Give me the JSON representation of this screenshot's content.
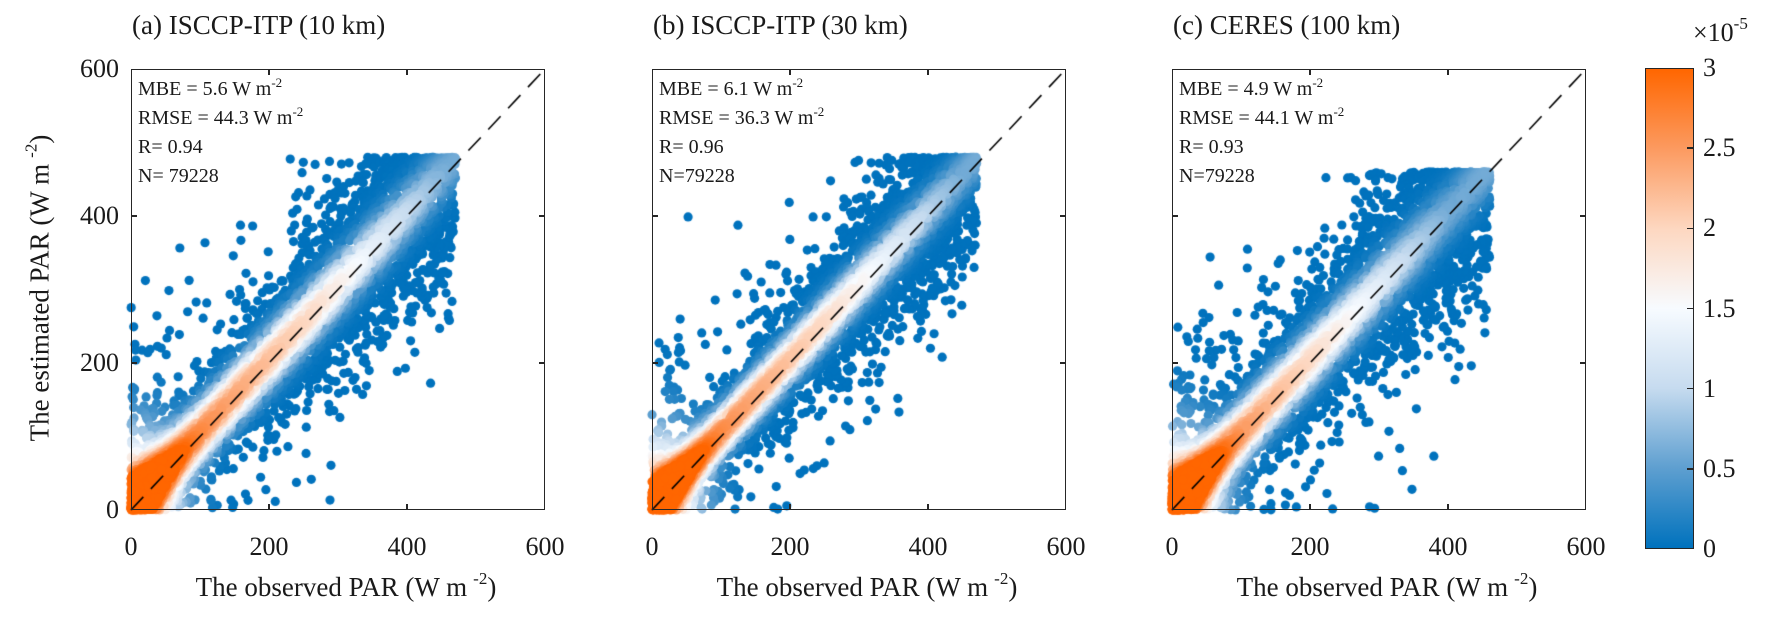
{
  "figure": {
    "ylabel": {
      "text": "The estimated PAR (W m",
      "sup": "-2",
      "close": ")"
    },
    "xlabel": {
      "text": "The observed PAR (W m",
      "sup": "-2",
      "close": ")"
    },
    "colors": {
      "low": "#0072BD",
      "mid": "#F7FBFF",
      "high": "#FF6600",
      "frame": "#262626",
      "diagonal": "#000000"
    }
  },
  "chart_data": [
    {
      "type": "scatter",
      "title": "(a) ISCCP-ITP (10 km)",
      "xlabel": "The observed PAR (W m-2)",
      "ylabel": "The estimated PAR (W m-2)",
      "xlim": [
        0,
        600
      ],
      "ylim": [
        0,
        600
      ],
      "xticks": [
        "0",
        "200",
        "400",
        "600"
      ],
      "yticks": [
        "0",
        "200",
        "400",
        "600"
      ],
      "reference_line": {
        "style": "dashed",
        "from": [
          0,
          0
        ],
        "to": [
          600,
          600
        ]
      },
      "stats": [
        {
          "label": "MBE = 5.6 W m",
          "sup": "-2"
        },
        {
          "label": "RMSE = 44.3 W m",
          "sup": "-2"
        },
        {
          "label": "R= 0.94",
          "sup": ""
        },
        {
          "label": "N= 79228",
          "sup": ""
        }
      ],
      "summary": {
        "MBE": 5.6,
        "RMSE": 44.3,
        "R": 0.94,
        "N": 79228
      },
      "cloud": {
        "x_max": 480,
        "y_max": 480,
        "bias": 5.6,
        "spread": 44.3,
        "outlier_spread": 110,
        "core_end": 260
      },
      "color_by": "point density"
    },
    {
      "type": "scatter",
      "title": "(b) ISCCP-ITP (30 km)",
      "xlabel": "The observed PAR (W m-2)",
      "ylabel": "",
      "xlim": [
        0,
        600
      ],
      "ylim": [
        0,
        600
      ],
      "xticks": [
        "0",
        "200",
        "400",
        "600"
      ],
      "yticks": [],
      "reference_line": {
        "style": "dashed",
        "from": [
          0,
          0
        ],
        "to": [
          600,
          600
        ]
      },
      "stats": [
        {
          "label": "MBE = 6.1 W m",
          "sup": "-2"
        },
        {
          "label": "RMSE = 36.3 W m",
          "sup": "-2"
        },
        {
          "label": "R= 0.96",
          "sup": ""
        },
        {
          "label": "N=79228",
          "sup": ""
        }
      ],
      "summary": {
        "MBE": 6.1,
        "RMSE": 36.3,
        "R": 0.96,
        "N": 79228
      },
      "cloud": {
        "x_max": 480,
        "y_max": 480,
        "bias": 6.1,
        "spread": 36.3,
        "outlier_spread": 95,
        "core_end": 250
      },
      "color_by": "point density"
    },
    {
      "type": "scatter",
      "title": "(c) CERES (100 km)",
      "xlabel": "The observed PAR (W m-2)",
      "ylabel": "",
      "xlim": [
        0,
        600
      ],
      "ylim": [
        0,
        600
      ],
      "xticks": [
        "0",
        "200",
        "400",
        "600"
      ],
      "yticks": [],
      "reference_line": {
        "style": "dashed",
        "from": [
          0,
          0
        ],
        "to": [
          600,
          600
        ]
      },
      "stats": [
        {
          "label": "MBE = 4.9 W m",
          "sup": "-2"
        },
        {
          "label": "RMSE = 44.1 W m",
          "sup": "-2"
        },
        {
          "label": "R= 0.93",
          "sup": ""
        },
        {
          "label": "N=79228",
          "sup": ""
        }
      ],
      "summary": {
        "MBE": 4.9,
        "RMSE": 44.1,
        "R": 0.93,
        "N": 79228
      },
      "cloud": {
        "x_max": 470,
        "y_max": 460,
        "bias": 4.9,
        "spread": 44.1,
        "outlier_spread": 110,
        "core_end": 200
      },
      "color_by": "point density"
    }
  ],
  "colorbar": {
    "label_exponent": {
      "prefix": "×10",
      "sup": "-5"
    },
    "range": [
      0,
      3
    ],
    "ticks": [
      "3",
      "2.5",
      "2",
      "1.5",
      "1",
      "0.5",
      "0"
    ],
    "tick_values": [
      3,
      2.5,
      2,
      1.5,
      1,
      0.5,
      0
    ],
    "colormap": [
      "#0072BD",
      "#5E9FD0",
      "#C6DBEF",
      "#F7FBFF",
      "#FDD7C0",
      "#FC9A60",
      "#FF6600"
    ]
  }
}
